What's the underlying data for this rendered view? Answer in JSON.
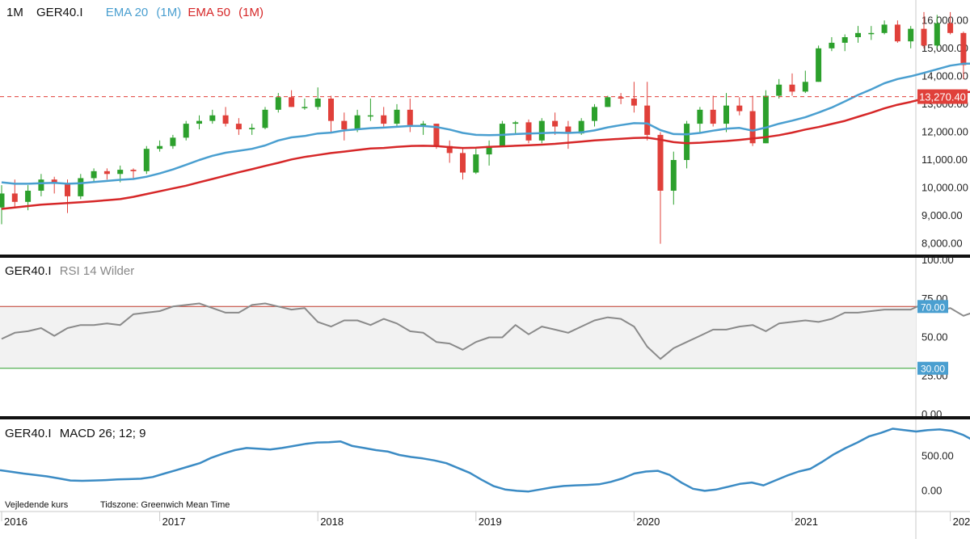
{
  "header": {
    "interval": "1M",
    "symbol": "GER40.I",
    "ema20_label": "EMA 20",
    "ema20_interval": "(1M)",
    "ema50_label": "EMA 50",
    "ema50_interval": "(1M)"
  },
  "rsi_header": {
    "symbol": "GER40.I",
    "label": "RSI 14 Wilder"
  },
  "macd_header": {
    "symbol": "GER40.I",
    "label": "MACD 26; 12; 9"
  },
  "footer": {
    "price_note": "Vejledende kurs",
    "timezone": "Tidszone: Greenwich Mean Time"
  },
  "colors": {
    "up": "#2ca02c",
    "down": "#e0403a",
    "ema20": "#4a9fd0",
    "ema50": "#d62728",
    "rsi_line": "#8a8a8a",
    "rsi_band": "#f2f2f2",
    "macd_line": "#3b8bc4",
    "price_tag": "#e0403a",
    "rsi_tag": "#4a9fd0"
  },
  "chart_data": [
    {
      "type": "candlestick",
      "title": "GER40.I 1M",
      "ylim": [
        7700,
        16500
      ],
      "yticks": [
        "16,000.00",
        "15,000.00",
        "14,000.00",
        "13,000.00",
        "12,000.00",
        "11,000.00",
        "10,000.00",
        "9,000.00",
        "8,000.00"
      ],
      "ytick_values": [
        16000,
        15000,
        14000,
        13000,
        12000,
        11000,
        10000,
        9000,
        8000
      ],
      "current_price": 13270.4,
      "current_price_label": "13,270.40",
      "x_start": 2016.0,
      "x_labels": [
        "2016",
        "2017",
        "2018",
        "2019",
        "2020",
        "2021",
        "2022"
      ],
      "x_label_values": [
        2016,
        2017,
        2018,
        2019,
        2020,
        2021,
        2022
      ],
      "candles": [
        [
          9300,
          9800,
          10100,
          8700
        ],
        [
          9800,
          9500,
          10300,
          9300
        ],
        [
          9500,
          9900,
          10100,
          9200
        ],
        [
          9900,
          10300,
          10500,
          9700
        ],
        [
          10300,
          10150,
          10400,
          9800
        ],
        [
          10150,
          9700,
          10300,
          9100
        ],
        [
          9700,
          10350,
          10500,
          9600
        ],
        [
          10350,
          10600,
          10700,
          10200
        ],
        [
          10600,
          10500,
          10700,
          10300
        ],
        [
          10500,
          10650,
          10800,
          10200
        ],
        [
          10650,
          10600,
          10700,
          10300
        ],
        [
          10600,
          11400,
          11500,
          10500
        ],
        [
          11400,
          11500,
          11700,
          11300
        ],
        [
          11500,
          11800,
          11900,
          11400
        ],
        [
          11800,
          12300,
          12400,
          11700
        ],
        [
          12300,
          12400,
          12600,
          12100
        ],
        [
          12400,
          12600,
          12800,
          12300
        ],
        [
          12600,
          12300,
          12900,
          12200
        ],
        [
          12300,
          12100,
          12500,
          11900
        ],
        [
          12100,
          12150,
          12300,
          11900
        ],
        [
          12150,
          12800,
          12900,
          12100
        ],
        [
          12800,
          13250,
          13400,
          12700
        ],
        [
          13250,
          12900,
          13500,
          12900
        ],
        [
          12900,
          12900,
          13200,
          12800
        ],
        [
          12900,
          13200,
          13600,
          12800
        ],
        [
          13200,
          12400,
          13300,
          12000
        ],
        [
          12400,
          12100,
          12700,
          11700
        ],
        [
          12100,
          12600,
          12800,
          12000
        ],
        [
          12600,
          12600,
          13200,
          12400
        ],
        [
          12600,
          12300,
          12900,
          12200
        ],
        [
          12300,
          12800,
          13000,
          12200
        ],
        [
          12800,
          12250,
          13200,
          12000
        ],
        [
          12250,
          12300,
          12400,
          11900
        ],
        [
          12300,
          11500,
          12300,
          11400
        ],
        [
          11500,
          11250,
          11700,
          10900
        ],
        [
          11250,
          10550,
          11400,
          10300
        ],
        [
          10550,
          11200,
          11400,
          10500
        ],
        [
          11200,
          11500,
          11700,
          10800
        ],
        [
          11500,
          12300,
          12400,
          11500
        ],
        [
          12300,
          12350,
          12400,
          11900
        ],
        [
          12350,
          11700,
          12450,
          11600
        ],
        [
          11700,
          12400,
          12500,
          11600
        ],
        [
          12400,
          12200,
          12700,
          11900
        ],
        [
          12200,
          11950,
          12400,
          11400
        ],
        [
          11950,
          12400,
          12500,
          11900
        ],
        [
          12400,
          12900,
          13000,
          12200
        ],
        [
          12900,
          13250,
          13300,
          12900
        ],
        [
          13250,
          13200,
          13400,
          13000
        ],
        [
          13200,
          12950,
          13800,
          12700
        ],
        [
          12950,
          11900,
          13800,
          11700
        ],
        [
          11900,
          9900,
          12000,
          8000
        ],
        [
          9900,
          11000,
          11300,
          9400
        ],
        [
          11000,
          12300,
          12400,
          10700
        ],
        [
          12300,
          12800,
          12900,
          12000
        ],
        [
          12800,
          12300,
          13300,
          12200
        ],
        [
          12300,
          12950,
          13400,
          12000
        ],
        [
          12950,
          12750,
          13250,
          12600
        ],
        [
          12750,
          11600,
          13300,
          11500
        ],
        [
          11600,
          13300,
          13500,
          11600
        ],
        [
          13300,
          13700,
          13900,
          13200
        ],
        [
          13700,
          13450,
          14100,
          13300
        ],
        [
          13450,
          13800,
          14200,
          13400
        ],
        [
          13800,
          15000,
          15100,
          13800
        ],
        [
          15000,
          15200,
          15400,
          14900
        ],
        [
          15200,
          15400,
          15500,
          14900
        ],
        [
          15400,
          15550,
          15800,
          15200
        ],
        [
          15550,
          15550,
          15800,
          15300
        ],
        [
          15550,
          15850,
          16000,
          15500
        ],
        [
          15850,
          15250,
          16000,
          15200
        ],
        [
          15250,
          15700,
          15800,
          15000
        ],
        [
          15700,
          15100,
          16300,
          15000
        ],
        [
          15100,
          15900,
          16200,
          15000
        ],
        [
          15900,
          15550,
          16300,
          15500
        ],
        [
          15550,
          14400,
          15600,
          13900
        ],
        [
          14400,
          14400,
          15300,
          12400
        ],
        [
          14400,
          14100,
          14600,
          13600
        ],
        [
          14100,
          14500,
          14600,
          13600
        ],
        [
          14500,
          13500,
          14700,
          12600
        ],
        [
          13500,
          12800,
          13500,
          12600
        ],
        [
          12800,
          13500,
          13550,
          12400
        ],
        [
          13500,
          13270,
          13900,
          13000
        ]
      ],
      "ema20": [
        10200,
        10150,
        10150,
        10170,
        10180,
        10150,
        10170,
        10210,
        10250,
        10290,
        10320,
        10400,
        10520,
        10660,
        10830,
        11000,
        11150,
        11260,
        11330,
        11400,
        11520,
        11700,
        11810,
        11860,
        11950,
        11980,
        12060,
        12100,
        12140,
        12160,
        12190,
        12220,
        12220,
        12180,
        12090,
        11970,
        11900,
        11890,
        11900,
        11930,
        11950,
        11960,
        11980,
        11970,
        11990,
        12060,
        12170,
        12250,
        12320,
        12310,
        12070,
        11930,
        11920,
        11970,
        12050,
        12120,
        12150,
        12050,
        12160,
        12300,
        12410,
        12530,
        12700,
        12880,
        13100,
        13330,
        13530,
        13750,
        13900,
        14000,
        14120,
        14250,
        14380,
        14450,
        14450,
        14420,
        14390,
        14350,
        14290,
        14200,
        14130
      ],
      "ema50": [
        9250,
        9300,
        9350,
        9400,
        9430,
        9460,
        9490,
        9520,
        9560,
        9600,
        9680,
        9780,
        9880,
        9980,
        10080,
        10200,
        10320,
        10440,
        10560,
        10670,
        10790,
        10900,
        11020,
        11110,
        11180,
        11250,
        11300,
        11360,
        11410,
        11430,
        11470,
        11500,
        11510,
        11500,
        11460,
        11430,
        11440,
        11470,
        11490,
        11510,
        11530,
        11550,
        11580,
        11620,
        11660,
        11700,
        11730,
        11760,
        11790,
        11800,
        11730,
        11640,
        11600,
        11620,
        11650,
        11680,
        11720,
        11770,
        11820,
        11890,
        11980,
        12090,
        12180,
        12290,
        12400,
        12550,
        12690,
        12850,
        12980,
        13080,
        13200,
        13280,
        13390,
        13430,
        13450,
        13450,
        13420,
        13390,
        13360,
        13330,
        13280
      ]
    },
    {
      "type": "line",
      "title": "RSI 14 Wilder",
      "ylim": [
        0,
        100
      ],
      "yticks": [
        "100.00",
        "75.00",
        "50.00",
        "25.00",
        "0.00"
      ],
      "ytick_values": [
        100,
        75,
        50,
        25,
        0
      ],
      "overbought": 70,
      "overbought_label": "70.00",
      "oversold": 30,
      "oversold_label": "30.00",
      "values": [
        49,
        53,
        54,
        56,
        51,
        56,
        58,
        58,
        59,
        58,
        65,
        66,
        67,
        70,
        71,
        72,
        69,
        66,
        66,
        71,
        72,
        70,
        68,
        69,
        60,
        57,
        61,
        61,
        58,
        62,
        59,
        54,
        53,
        47,
        46,
        42,
        47,
        50,
        50,
        58,
        52,
        57,
        55,
        53,
        57,
        61,
        63,
        62,
        57,
        44,
        36,
        43,
        47,
        51,
        55,
        55,
        57,
        58,
        54,
        59,
        60,
        61,
        60,
        62,
        66,
        66,
        67,
        68,
        68,
        68,
        72,
        67,
        69,
        64,
        67,
        62,
        55,
        55,
        52,
        55,
        47,
        50,
        49
      ]
    },
    {
      "type": "line",
      "title": "MACD 26; 12; 9",
      "ylim": [
        -300,
        1000
      ],
      "yticks": [
        "500.00",
        "0.00"
      ],
      "ytick_values": [
        500,
        0
      ],
      "values": [
        300,
        275,
        250,
        230,
        210,
        180,
        150,
        145,
        150,
        155,
        165,
        170,
        175,
        200,
        250,
        300,
        350,
        400,
        480,
        540,
        590,
        620,
        610,
        600,
        620,
        650,
        680,
        700,
        705,
        715,
        650,
        620,
        590,
        570,
        520,
        490,
        470,
        440,
        400,
        330,
        260,
        160,
        70,
        20,
        0,
        -10,
        20,
        50,
        70,
        80,
        85,
        95,
        130,
        180,
        250,
        280,
        290,
        230,
        120,
        30,
        0,
        20,
        60,
        100,
        120,
        80,
        150,
        220,
        280,
        320,
        420,
        530,
        620,
        700,
        790,
        840,
        900,
        880,
        860,
        880,
        890,
        870,
        810,
        720,
        600,
        520,
        450,
        330,
        250,
        200,
        170,
        120
      ]
    }
  ]
}
